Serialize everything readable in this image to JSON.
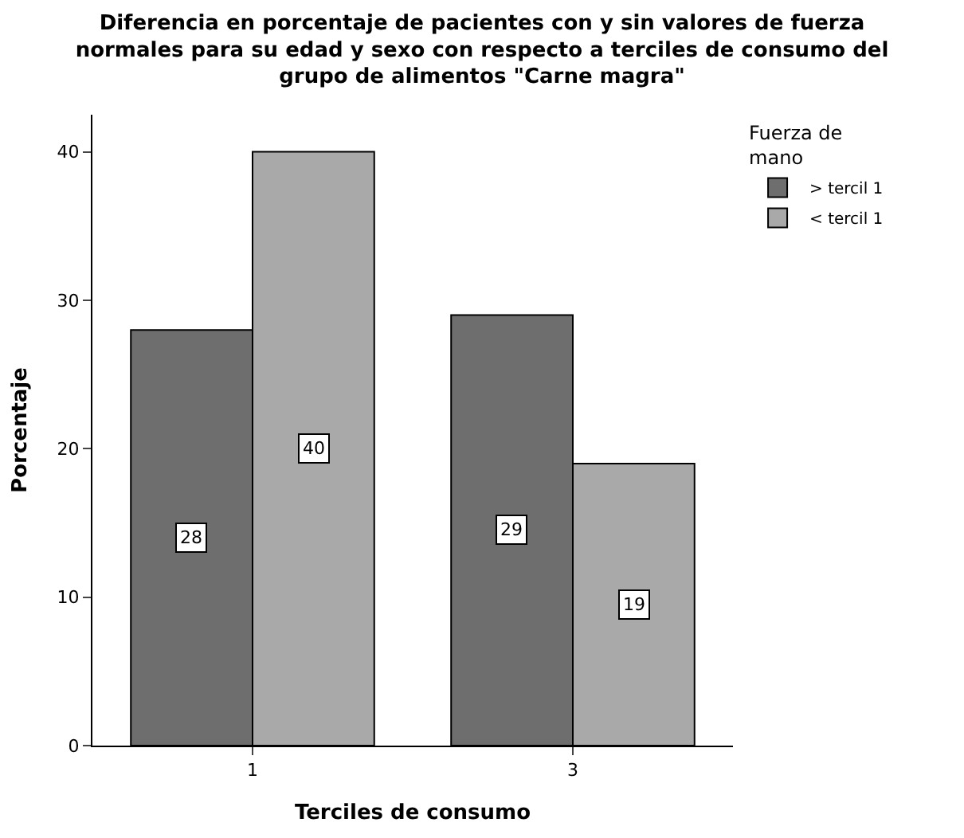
{
  "chart_data": {
    "type": "bar",
    "title": "Diferencia en porcentaje de pacientes con y sin valores de fuerza normales para su edad y sexo con respecto a terciles de consumo del grupo de alimentos \"Carne magra\"",
    "xlabel": "Terciles de consumo",
    "ylabel": "Porcentaje",
    "legend_title": "Fuerza de mano",
    "categories": [
      "1",
      "3"
    ],
    "series": [
      {
        "name": "> tercil 1",
        "color": "#6e6e6e",
        "values": [
          28,
          29
        ]
      },
      {
        "name": "< tercil 1",
        "color": "#a9a9a9",
        "values": [
          40,
          19
        ]
      }
    ],
    "ylim": [
      0,
      42.5
    ],
    "yticks": [
      0,
      10,
      20,
      30,
      40
    ],
    "legend": "top right",
    "data_labels": true
  }
}
